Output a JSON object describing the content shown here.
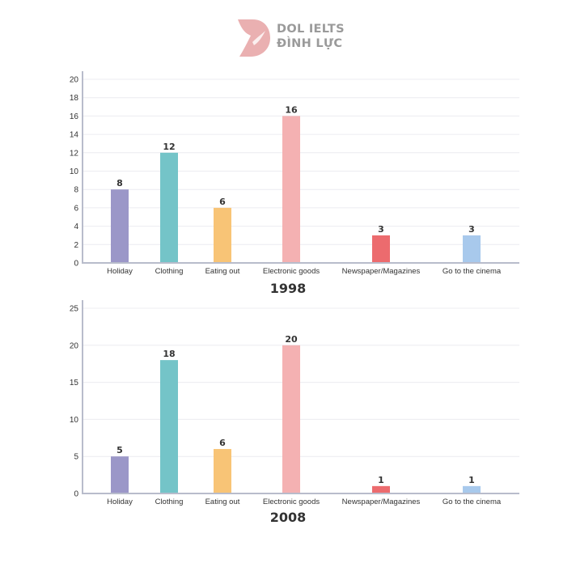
{
  "logo": {
    "line1": "DOL IELTS",
    "line2": "ĐÌNH LỰC",
    "color": "#e8a5a6"
  },
  "chart_data": [
    {
      "type": "bar",
      "title": "1998",
      "categories": [
        "Holiday",
        "Clothing",
        "Eating out",
        "Electronic goods",
        "Newspaper/Magazines",
        "Go to the cinema"
      ],
      "values": [
        8,
        12,
        6,
        16,
        3,
        3
      ],
      "colors": [
        "#9b97c8",
        "#74c4c8",
        "#f8c476",
        "#f4b1b2",
        "#ec6b6e",
        "#a8c9ec"
      ],
      "ylim": [
        0,
        20
      ],
      "yticks": [
        0,
        2,
        4,
        6,
        8,
        10,
        12,
        14,
        16,
        18,
        20
      ],
      "grid": true,
      "data_labels": true
    },
    {
      "type": "bar",
      "title": "2008",
      "categories": [
        "Holiday",
        "Clothing",
        "Eating out",
        "Electronic goods",
        "Newspaper/Magazines",
        "Go to the cinema"
      ],
      "values": [
        5,
        18,
        6,
        20,
        1,
        1
      ],
      "colors": [
        "#9b97c8",
        "#74c4c8",
        "#f8c476",
        "#f4b1b2",
        "#ec6b6e",
        "#a8c9ec"
      ],
      "ylim": [
        0,
        25
      ],
      "yticks": [
        0,
        5,
        10,
        15,
        20,
        25
      ],
      "grid": true,
      "data_labels": true
    }
  ]
}
